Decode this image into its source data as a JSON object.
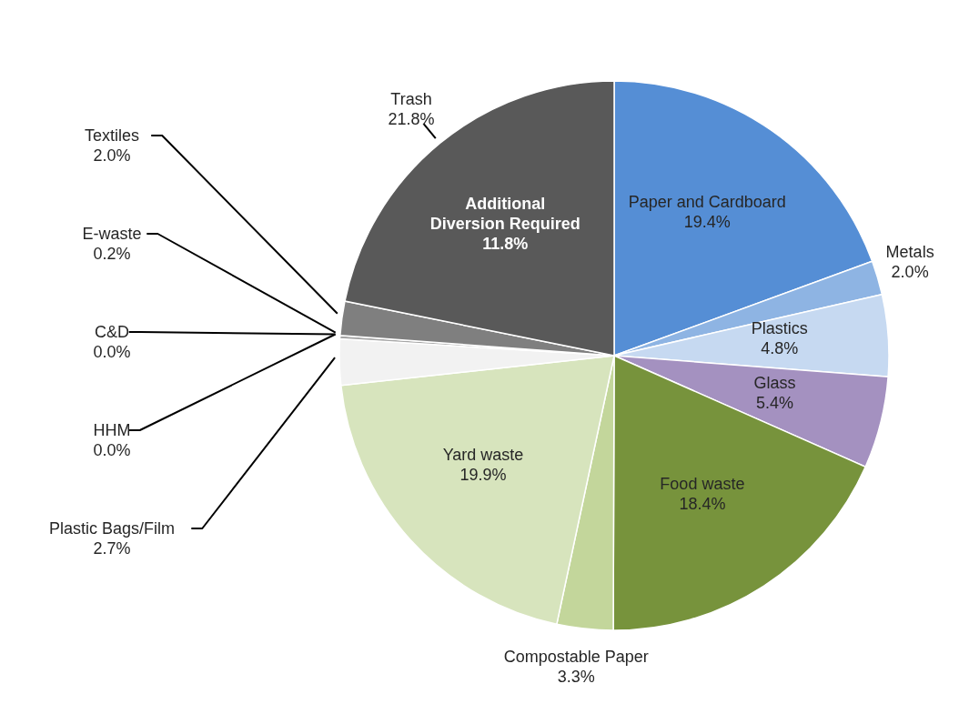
{
  "chart_data": {
    "type": "pie",
    "categories": [
      "Paper and Cardboard",
      "Metals",
      "Plastics",
      "Glass",
      "Food waste",
      "Compostable Paper",
      "Yard waste",
      "Plastic Bags/Film",
      "HHM",
      "C&D",
      "E-waste",
      "Textiles",
      "Trash"
    ],
    "values": [
      19.4,
      2.0,
      4.8,
      5.4,
      18.4,
      3.3,
      19.9,
      2.7,
      0.0,
      0.0,
      0.2,
      2.0,
      21.8
    ],
    "value_labels": [
      "19.4%",
      "2.0%",
      "4.8%",
      "5.4%",
      "18.4%",
      "3.3%",
      "19.9%",
      "2.7%",
      "0.0%",
      "0.0%",
      "0.2%",
      "2.0%",
      "21.8%"
    ],
    "colors": [
      "#558ed5",
      "#8eb4e3",
      "#c6d9f1",
      "#a491c0",
      "#77933c",
      "#c3d69b",
      "#d7e4bd",
      "#f2f2f2",
      "#bfbfbf",
      "#bfbfbf",
      "#a6a6a6",
      "#7f7f7f",
      "#595959"
    ],
    "annotations": [
      {
        "text": "Additional Diversion Required 11.8%",
        "x": "Trash"
      }
    ],
    "legend": false
  }
}
